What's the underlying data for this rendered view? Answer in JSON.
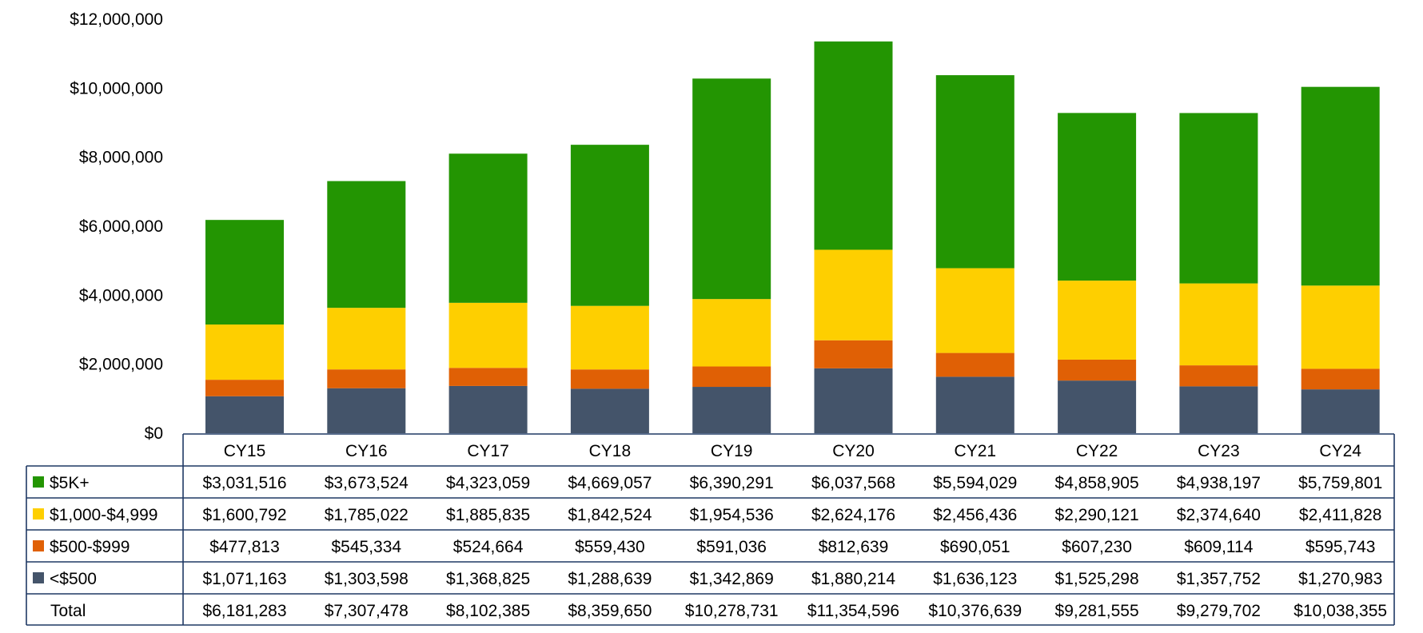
{
  "chart_data": {
    "type": "bar",
    "stacked": true,
    "categories": [
      "CY15",
      "CY16",
      "CY17",
      "CY18",
      "CY19",
      "CY20",
      "CY21",
      "CY22",
      "CY23",
      "CY24"
    ],
    "ylim": [
      0,
      12000000
    ],
    "y_ticks": [
      {
        "value": 0,
        "label": "$0"
      },
      {
        "value": 2000000,
        "label": "$2,000,000"
      },
      {
        "value": 4000000,
        "label": "$4,000,000"
      },
      {
        "value": 6000000,
        "label": "$6,000,000"
      },
      {
        "value": 8000000,
        "label": "$8,000,000"
      },
      {
        "value": 10000000,
        "label": "$10,000,000"
      },
      {
        "value": 12000000,
        "label": "$12,000,000"
      }
    ],
    "grid": false,
    "legend_placement": "data table",
    "series": [
      {
        "name": "$5K+",
        "color": "#239502",
        "values": [
          3031516,
          3673524,
          4323059,
          4669057,
          6390291,
          6037568,
          5594029,
          4858905,
          4938197,
          5759801
        ],
        "labels": [
          "$3,031,516",
          "$3,673,524",
          "$4,323,059",
          "$4,669,057",
          "$6,390,291",
          "$6,037,568",
          "$5,594,029",
          "$4,858,905",
          "$4,938,197",
          "$5,759,801"
        ]
      },
      {
        "name": "$1,000-$4,999",
        "color": "#FECF00",
        "values": [
          1600792,
          1785022,
          1885835,
          1842524,
          1954536,
          2624176,
          2456436,
          2290121,
          2374640,
          2411828
        ],
        "labels": [
          "$1,600,792",
          "$1,785,022",
          "$1,885,835",
          "$1,842,524",
          "$1,954,536",
          "$2,624,176",
          "$2,456,436",
          "$2,290,121",
          "$2,374,640",
          "$2,411,828"
        ]
      },
      {
        "name": "$500-$999",
        "color": "#E06005",
        "values": [
          477813,
          545334,
          524664,
          559430,
          591036,
          812639,
          690051,
          607230,
          609114,
          595743
        ],
        "labels": [
          "$477,813",
          "$545,334",
          "$524,664",
          "$559,430",
          "$591,036",
          "$812,639",
          "$690,051",
          "$607,230",
          "$609,114",
          "$595,743"
        ]
      },
      {
        "name": "<$500",
        "color": "#44546A",
        "values": [
          1071163,
          1303598,
          1368825,
          1288639,
          1342869,
          1880214,
          1636123,
          1525298,
          1357752,
          1270983
        ],
        "labels": [
          "$1,071,163",
          "$1,303,598",
          "$1,368,825",
          "$1,288,639",
          "$1,342,869",
          "$1,880,214",
          "$1,636,123",
          "$1,525,298",
          "$1,357,752",
          "$1,270,983"
        ]
      }
    ],
    "total": {
      "name": "Total",
      "values": [
        6181283,
        7307478,
        8102385,
        8359650,
        10278731,
        11354596,
        10376639,
        9281555,
        9279702,
        10038355
      ],
      "labels": [
        "$6,181,283",
        "$7,307,478",
        "$8,102,385",
        "$8,359,650",
        "$10,278,731",
        "$11,354,596",
        "$10,376,639",
        "$9,281,555",
        "$9,279,702",
        "$10,038,355"
      ]
    }
  }
}
